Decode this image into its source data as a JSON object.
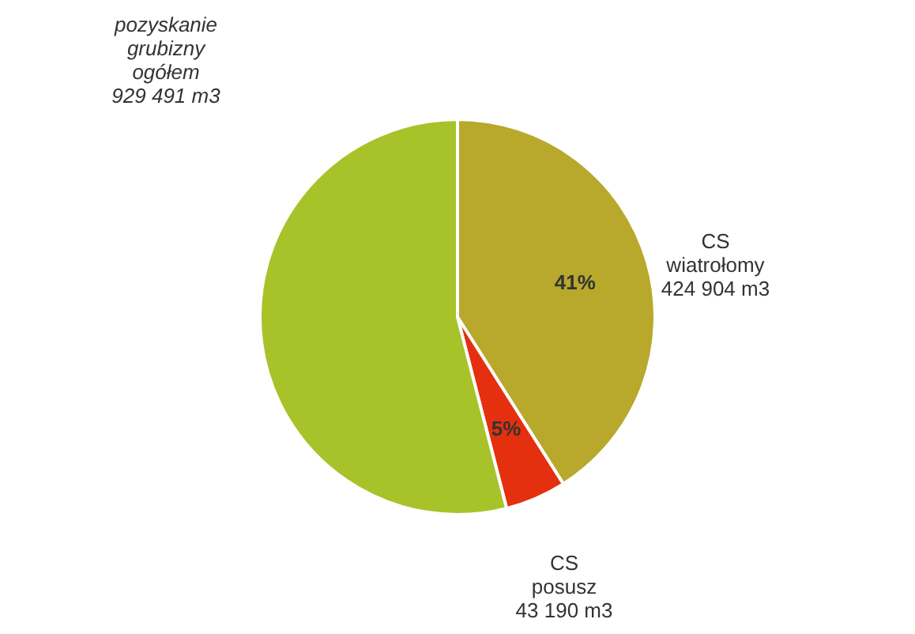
{
  "chart_data": {
    "type": "pie",
    "categories": [
      "CS\nwiatrołomy\n424 904 m3",
      "CS\nposusz\n43 190 m3",
      null
    ],
    "values": [
      41,
      5,
      54
    ],
    "colors": [
      "#b8a82c",
      "#e4300e",
      "#a8c22a"
    ],
    "value_labels": [
      "41%",
      "5%",
      null
    ],
    "annotations": [
      "pozyskanie\ngrubizny\nogółem\n929 491 m3"
    ]
  }
}
